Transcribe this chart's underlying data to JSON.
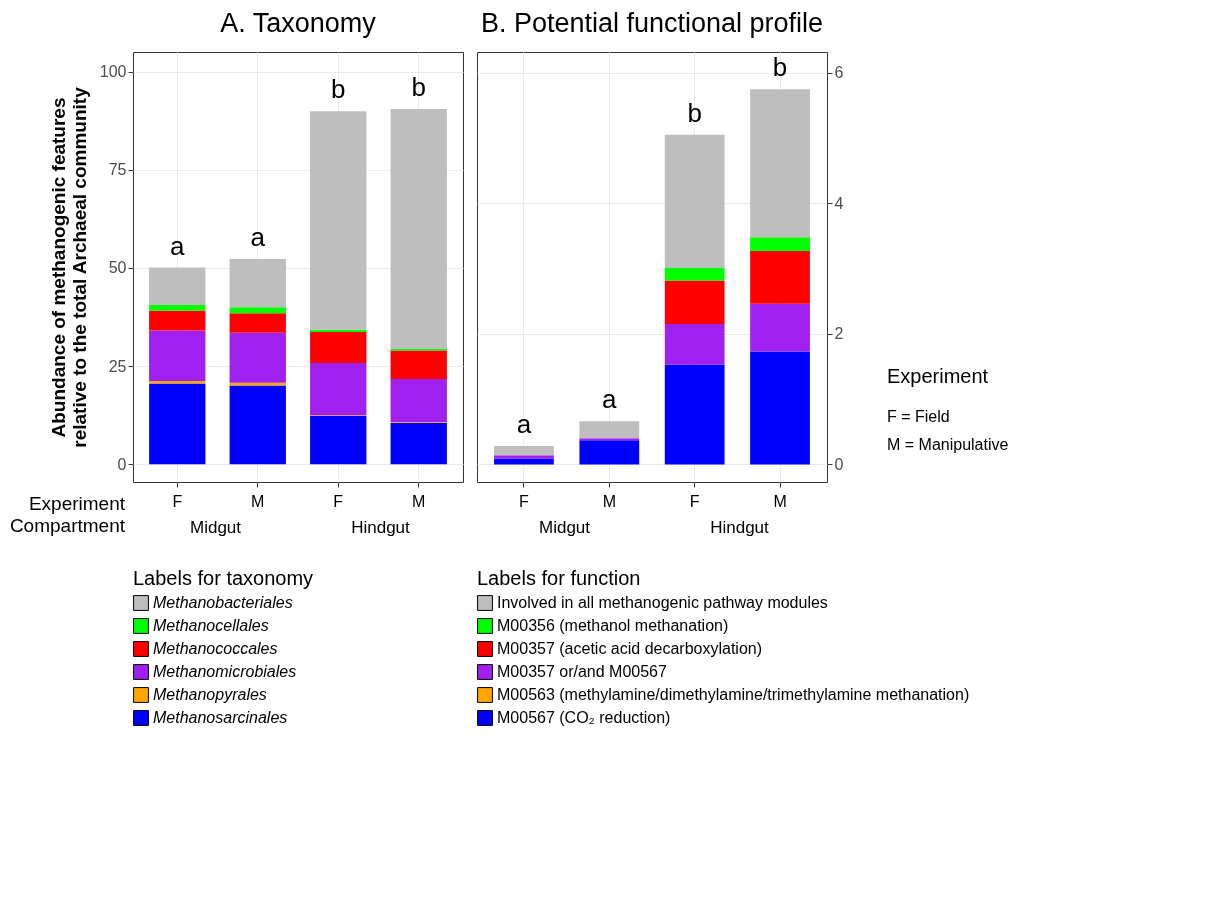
{
  "chart_data": [
    {
      "type": "bar",
      "title": "A. Taxonomy",
      "ylabel": "Abundance of methanogenic features relative to the total Archaeal community",
      "categories": [
        "F",
        "M",
        "F",
        "M"
      ],
      "stacked": true,
      "ylim": [
        -4.5,
        105
      ],
      "yticks": [
        0,
        25,
        50,
        75,
        100
      ],
      "grid": true,
      "legend": "bottom",
      "legend_title": "Labels for taxonomy",
      "series": [
        {
          "name": "Methanosarcinales",
          "color": "#0000ff",
          "values": [
            20.6,
            20.1,
            12.3,
            10.6
          ]
        },
        {
          "name": "Methanopyrales",
          "color": "#ffa500",
          "values": [
            0.6,
            0.7,
            0.2,
            0.2
          ]
        },
        {
          "name": "Methanomicrobiales",
          "color": "#a020f0",
          "values": [
            12.9,
            12.7,
            13.3,
            10.9
          ]
        },
        {
          "name": "Methanococcales",
          "color": "#ff0000",
          "values": [
            5.0,
            5.0,
            7.9,
            7.3
          ]
        },
        {
          "name": "Methanocellales",
          "color": "#00ff00",
          "values": [
            1.5,
            1.5,
            0.6,
            0.4
          ]
        },
        {
          "name": "Methanobacteriales",
          "color": "#bebebe",
          "values": [
            9.5,
            12.3,
            55.6,
            61.1
          ]
        }
      ],
      "annotations": [
        "Experiment",
        "Compartment",
        "Midgut",
        "Hindgut",
        "a",
        "a",
        "b",
        "b"
      ]
    },
    {
      "type": "bar",
      "title": "B. Potential functional profile",
      "categories": [
        "F",
        "M",
        "F",
        "M"
      ],
      "stacked": true,
      "ylim": [
        -0.27,
        6.32
      ],
      "yticks": [
        0,
        2,
        4,
        6
      ],
      "grid": true,
      "legend": "bottom",
      "legend_title": "Labels for function",
      "series": [
        {
          "name": "M00567 (CO₂ reduction)",
          "color": "#0000ff",
          "values": [
            0.09,
            0.37,
            1.53,
            1.73
          ]
        },
        {
          "name": "M00563 (methylamine/dimethylamine/trimethylamine methanation)",
          "color": "#ffa500",
          "values": [
            null,
            null,
            null,
            null
          ]
        },
        {
          "name": "M00357 or/and M00567",
          "color": "#a020f0",
          "values": [
            0.05,
            0.03,
            0.62,
            0.73
          ]
        },
        {
          "name": "M00357 (acetic acid decarboxylation)",
          "color": "#ff0000",
          "values": [
            null,
            null,
            0.67,
            0.81
          ]
        },
        {
          "name": "M00356 (methanol methanation)",
          "color": "#00ff00",
          "values": [
            null,
            null,
            0.19,
            0.21
          ]
        },
        {
          "name": "Involved in all methanogenic pathway modules",
          "color": "#bebebe",
          "values": [
            0.14,
            0.26,
            2.04,
            2.27
          ]
        }
      ],
      "annotations": [
        "Midgut",
        "Hindgut",
        "Experiment",
        "F  = Field",
        "M = Manipulative",
        "a",
        "a",
        "b",
        "b"
      ]
    }
  ]
}
